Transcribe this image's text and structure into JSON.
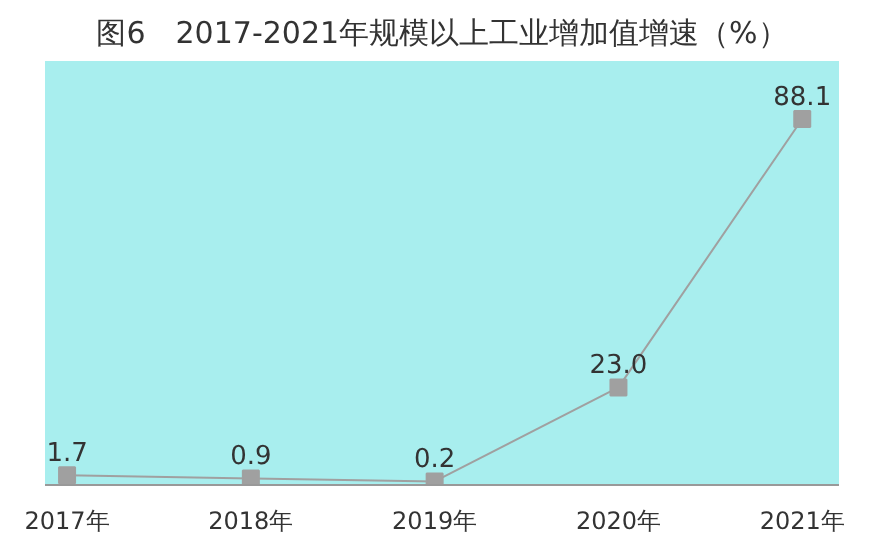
{
  "chart_data": {
    "type": "line",
    "title": "图6　2017-2021年规模以上工业增加值增速（%）",
    "categories": [
      "2017年",
      "2018年",
      "2019年",
      "2020年",
      "2021年"
    ],
    "values": [
      1.7,
      0.9,
      0.2,
      23.0,
      88.1
    ],
    "value_labels": [
      "1.7",
      "0.9",
      "0.2",
      "23.0",
      "88.1"
    ],
    "color": "#a0a0a0",
    "marker": "square",
    "line_style": "solid",
    "grid": false
  }
}
